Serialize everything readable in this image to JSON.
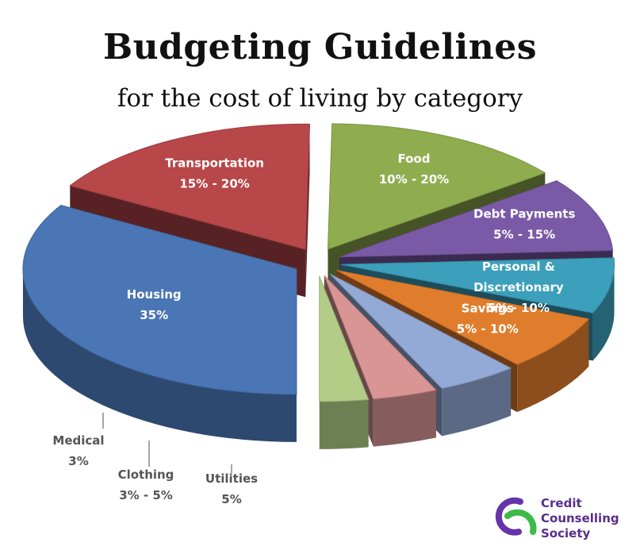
{
  "title": "Budgeting Guidelines",
  "subtitle": "for the cost of living by category",
  "chart_data": {
    "type": "pie",
    "title": "Budgeting Guidelines",
    "subtitle": "for the cost of living by category",
    "style": "3D exploded pie",
    "slices": [
      {
        "name": "Housing",
        "label": "35%",
        "value": 35,
        "color": "#4a76b5"
      },
      {
        "name": "Transportation",
        "label": "15% - 20%",
        "value": 17.5,
        "color": "#b8474a"
      },
      {
        "name": "Food",
        "label": "10% - 20%",
        "value": 15,
        "color": "#8fad4f"
      },
      {
        "name": "Debt Payments",
        "label": "5% - 15%",
        "value": 10,
        "color": "#7a5aa6"
      },
      {
        "name": "Personal & Discretionary",
        "label": "5% - 10%",
        "value": 7.5,
        "color": "#3c9fbb"
      },
      {
        "name": "Savings",
        "label": "5% - 10%",
        "value": 7.5,
        "color": "#e07d2d"
      },
      {
        "name": "Utilities",
        "label": "5%",
        "value": 5,
        "color": "#93a9d6"
      },
      {
        "name": "Clothing",
        "label": "3% - 5%",
        "value": 4,
        "color": "#d99594"
      },
      {
        "name": "Medical",
        "label": "3%",
        "value": 3,
        "color": "#b3cd87"
      }
    ]
  },
  "logo": {
    "line1": "Credit",
    "line2": "Counselling",
    "line3": "Society",
    "colors": {
      "purple": "#6633aa",
      "green": "#3dbb4a",
      "text": "#5a2d8c"
    }
  }
}
